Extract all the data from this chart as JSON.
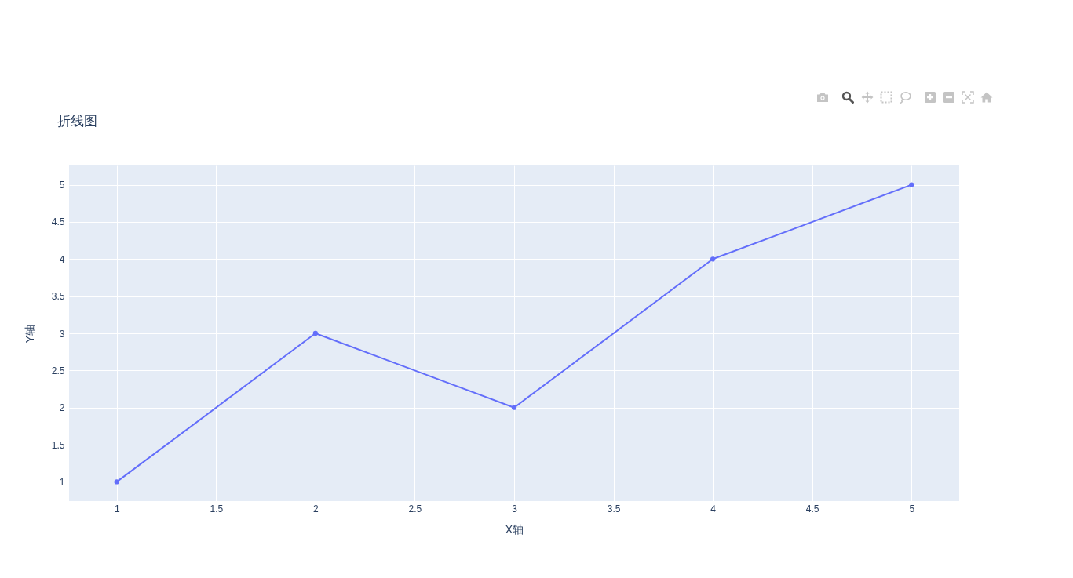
{
  "chart_data": {
    "type": "line",
    "title": "折线图",
    "xlabel": "X轴",
    "ylabel": "Y轴",
    "x": [
      1,
      2,
      3,
      4,
      5
    ],
    "series": [
      {
        "color": "#636efa",
        "values": [
          1,
          3,
          2,
          4,
          5
        ]
      }
    ],
    "xlim": [
      0.76,
      5.24
    ],
    "ylim": [
      0.74,
      5.26
    ],
    "xticks": [
      1,
      1.5,
      2,
      2.5,
      3,
      3.5,
      4,
      4.5,
      5
    ],
    "yticks": [
      1,
      1.5,
      2,
      2.5,
      3,
      3.5,
      4,
      4.5,
      5
    ],
    "grid": true,
    "marker": "circle",
    "line_style": "solid"
  }
}
